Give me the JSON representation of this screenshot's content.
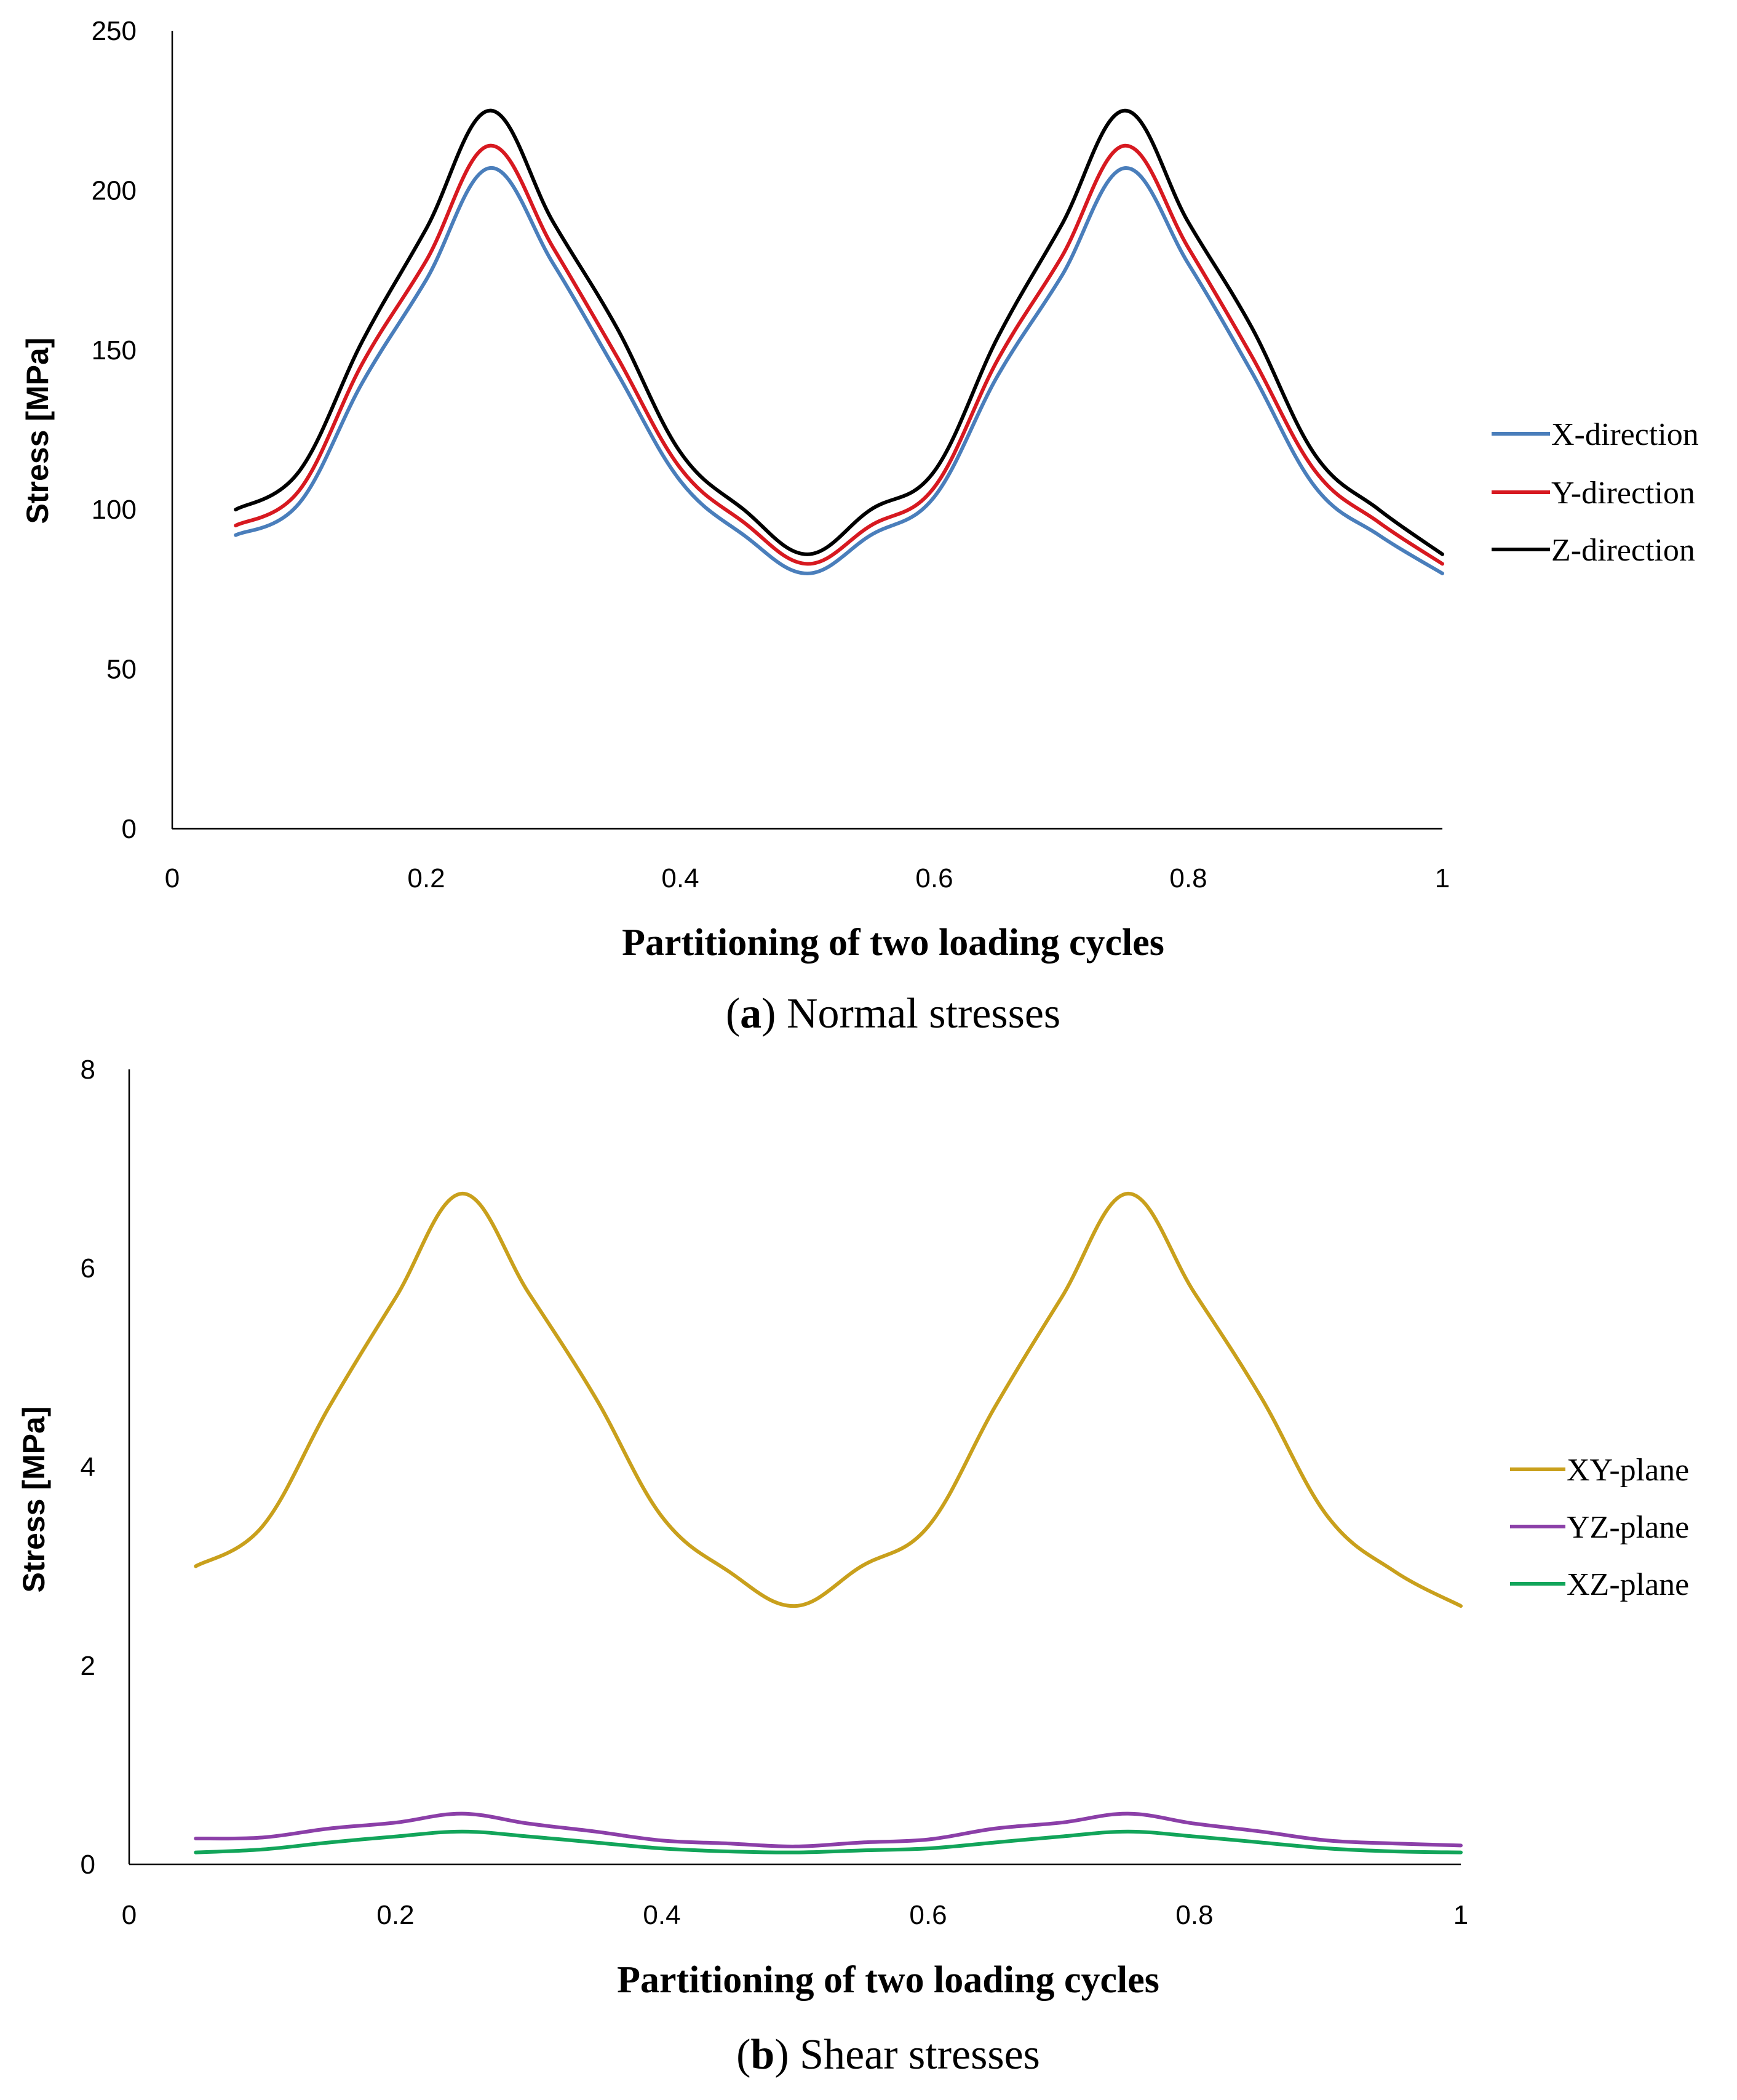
{
  "chart_data": [
    {
      "type": "line",
      "ylabel": "Stress [MPa]",
      "xlabel": "Partitioning of two loading cycles",
      "caption_label": "a",
      "caption_text": "Normal stresses",
      "xlim": [
        0,
        1
      ],
      "ylim": [
        0,
        250
      ],
      "xticks": [
        "0",
        "0.2",
        "0.4",
        "0.6",
        "0.8",
        "1"
      ],
      "xtick_values": [
        0,
        0.2,
        0.4,
        0.6,
        0.8,
        1
      ],
      "yticks": [
        "0",
        "50",
        "100",
        "150",
        "200",
        "250"
      ],
      "ytick_values": [
        0,
        50,
        100,
        150,
        200,
        250
      ],
      "grid": false,
      "legend_position": "right",
      "x": [
        0.05,
        0.1,
        0.15,
        0.2,
        0.25,
        0.3,
        0.35,
        0.4,
        0.45,
        0.5,
        0.55,
        0.6,
        0.65,
        0.7,
        0.75,
        0.8,
        0.85,
        0.9,
        0.95,
        1
      ],
      "series": [
        {
          "name": "X-direction",
          "color": "#4a7ebb",
          "values": [
            92,
            102,
            140,
            172,
            207,
            177,
            143,
            109,
            92,
            80,
            92,
            104,
            142,
            173,
            207,
            177,
            143,
            107,
            92,
            80
          ]
        },
        {
          "name": "Y-direction",
          "color": "#d71920",
          "values": [
            95,
            106,
            146,
            178,
            214,
            182,
            148,
            113,
            96,
            83,
            95,
            107,
            147,
            179,
            214,
            182,
            148,
            112,
            96,
            83
          ]
        },
        {
          "name": "Z-direction",
          "color": "#000000",
          "values": [
            100,
            112,
            153,
            188,
            225,
            190,
            157,
            118,
            100,
            86,
            100,
            112,
            154,
            189,
            225,
            190,
            157,
            117,
            100,
            86
          ]
        }
      ]
    },
    {
      "type": "line",
      "ylabel": "Stress [MPa]",
      "xlabel": "Partitioning of two loading cycles",
      "caption_label": "b",
      "caption_text": "Shear stresses",
      "xlim": [
        0,
        1
      ],
      "ylim": [
        0,
        8
      ],
      "xticks": [
        "0",
        "0.2",
        "0.4",
        "0.6",
        "0.8",
        "1"
      ],
      "xtick_values": [
        0,
        0.2,
        0.4,
        0.6,
        0.8,
        1
      ],
      "yticks": [
        "0",
        "2",
        "4",
        "6",
        "8"
      ],
      "ytick_values": [
        0,
        2,
        4,
        6,
        8
      ],
      "grid": false,
      "legend_position": "right",
      "x": [
        0.05,
        0.1,
        0.15,
        0.2,
        0.25,
        0.3,
        0.35,
        0.4,
        0.45,
        0.5,
        0.55,
        0.6,
        0.65,
        0.7,
        0.75,
        0.8,
        0.85,
        0.9,
        0.95,
        1
      ],
      "series": [
        {
          "name": "XY-plane",
          "color": "#c9a01c",
          "values": [
            3.0,
            3.4,
            4.6,
            5.7,
            6.75,
            5.75,
            4.7,
            3.5,
            2.95,
            2.6,
            3.0,
            3.4,
            4.6,
            5.7,
            6.75,
            5.75,
            4.7,
            3.5,
            2.95,
            2.6
          ]
        },
        {
          "name": "YZ-plane",
          "color": "#8b3fa8",
          "values": [
            0.26,
            0.27,
            0.36,
            0.42,
            0.51,
            0.41,
            0.33,
            0.24,
            0.21,
            0.18,
            0.22,
            0.25,
            0.36,
            0.42,
            0.51,
            0.41,
            0.33,
            0.24,
            0.21,
            0.19
          ]
        },
        {
          "name": "XZ-plane",
          "color": "#12a55a",
          "values": [
            0.12,
            0.15,
            0.22,
            0.28,
            0.33,
            0.28,
            0.22,
            0.16,
            0.13,
            0.12,
            0.14,
            0.16,
            0.22,
            0.28,
            0.33,
            0.28,
            0.22,
            0.16,
            0.13,
            0.12
          ]
        }
      ]
    }
  ]
}
